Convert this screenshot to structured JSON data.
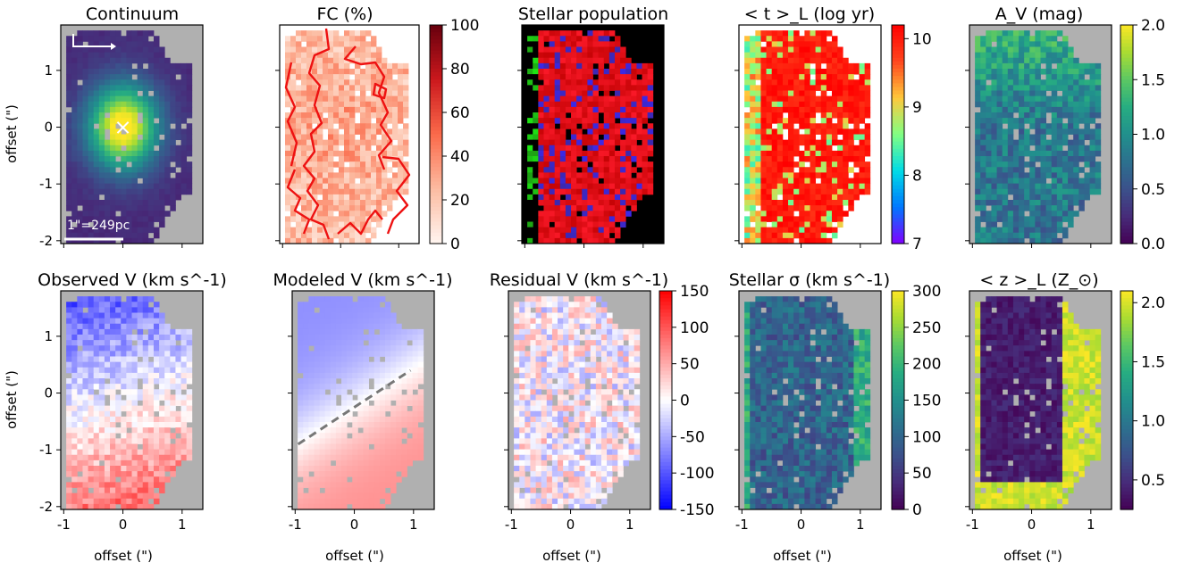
{
  "chart_data": [
    {
      "type": "heatmap",
      "title": "Continuum",
      "ylabel": "offset (\")",
      "xlabel": "",
      "cmap": "viridis",
      "ylim": [
        -2.05,
        1.8
      ],
      "xlim": [
        -1.05,
        1.35
      ],
      "yticks": [
        {
          "v": 1,
          "t": "1"
        },
        {
          "v": 0,
          "t": "0"
        },
        {
          "v": -1,
          "t": "-1"
        },
        {
          "v": -2,
          "t": "-2"
        }
      ],
      "xticks": [
        {
          "v": -1,
          "t": ""
        },
        {
          "v": 0,
          "t": ""
        },
        {
          "v": 1,
          "t": ""
        }
      ],
      "peak": {
        "x": 0.0,
        "y": 0.0
      },
      "annotations": {
        "marker": "×",
        "scalebar": "1\"=249pc"
      }
    },
    {
      "type": "heatmap",
      "title": "FC (%)",
      "cmap": "Reds",
      "ylim": [
        -2.05,
        1.8
      ],
      "xlim": [
        -1.05,
        1.35
      ],
      "yticks": [
        {
          "v": 1,
          "t": ""
        },
        {
          "v": 0,
          "t": ""
        },
        {
          "v": -1,
          "t": ""
        },
        {
          "v": -2,
          "t": ""
        }
      ],
      "xticks": [
        {
          "v": -1,
          "t": ""
        },
        {
          "v": 0,
          "t": ""
        },
        {
          "v": 1,
          "t": ""
        }
      ],
      "colorbar": {
        "range": [
          0,
          100
        ],
        "ticks": [
          {
            "v": 100,
            "t": "100"
          },
          {
            "v": 80,
            "t": "80"
          },
          {
            "v": 60,
            "t": "60"
          },
          {
            "v": 40,
            "t": "40"
          },
          {
            "v": 20,
            "t": "20"
          },
          {
            "v": 0,
            "t": "0"
          }
        ]
      }
    },
    {
      "type": "heatmap",
      "title": "Stellar population",
      "cmap": "rgb",
      "ylim": [
        -2.05,
        1.8
      ],
      "xlim": [
        -1.05,
        1.35
      ],
      "yticks": [
        {
          "v": 1,
          "t": ""
        },
        {
          "v": 0,
          "t": ""
        },
        {
          "v": -1,
          "t": ""
        },
        {
          "v": -2,
          "t": ""
        }
      ],
      "xticks": [
        {
          "v": -1,
          "t": ""
        },
        {
          "v": 0,
          "t": ""
        },
        {
          "v": 1,
          "t": ""
        }
      ]
    },
    {
      "type": "heatmap",
      "title": "< t >_L (log yr)",
      "cmap": "rainbow",
      "ylim": [
        -2.05,
        1.8
      ],
      "xlim": [
        -1.05,
        1.35
      ],
      "yticks": [
        {
          "v": 1,
          "t": ""
        },
        {
          "v": 0,
          "t": ""
        },
        {
          "v": -1,
          "t": ""
        },
        {
          "v": -2,
          "t": ""
        }
      ],
      "xticks": [
        {
          "v": -1,
          "t": ""
        },
        {
          "v": 0,
          "t": ""
        },
        {
          "v": 1,
          "t": ""
        }
      ],
      "colorbar": {
        "range": [
          7,
          10.2
        ],
        "ticks": [
          {
            "v": 10,
            "t": "10"
          },
          {
            "v": 9,
            "t": "9"
          },
          {
            "v": 8,
            "t": "8"
          },
          {
            "v": 7,
            "t": "7"
          }
        ]
      }
    },
    {
      "type": "heatmap",
      "title": "A_V (mag)",
      "cmap": "viridis",
      "ylim": [
        -2.05,
        1.8
      ],
      "xlim": [
        -1.05,
        1.35
      ],
      "yticks": [
        {
          "v": 1,
          "t": ""
        },
        {
          "v": 0,
          "t": ""
        },
        {
          "v": -1,
          "t": ""
        },
        {
          "v": -2,
          "t": ""
        }
      ],
      "xticks": [
        {
          "v": -1,
          "t": ""
        },
        {
          "v": 0,
          "t": ""
        },
        {
          "v": 1,
          "t": ""
        }
      ],
      "colorbar": {
        "range": [
          0,
          2
        ],
        "ticks": [
          {
            "v": 2,
            "t": "2.0"
          },
          {
            "v": 1.5,
            "t": "1.5"
          },
          {
            "v": 1,
            "t": "1.0"
          },
          {
            "v": 0.5,
            "t": "0.5"
          },
          {
            "v": 0,
            "t": "0.0"
          }
        ]
      }
    },
    {
      "type": "heatmap",
      "title": "Observed V (km s^-1)",
      "ylabel": "offset (\")",
      "xlabel": "offset (\")",
      "cmap": "bwr",
      "ylim": [
        -2.05,
        1.8
      ],
      "xlim": [
        -1.05,
        1.35
      ],
      "yticks": [
        {
          "v": 1,
          "t": "1"
        },
        {
          "v": 0,
          "t": "0"
        },
        {
          "v": -1,
          "t": "-1"
        },
        {
          "v": -2,
          "t": "-2"
        }
      ],
      "xticks": [
        {
          "v": -1,
          "t": "-1"
        },
        {
          "v": 0,
          "t": "0"
        },
        {
          "v": 1,
          "t": "1"
        }
      ]
    },
    {
      "type": "heatmap",
      "title": "Modeled V (km s^-1)",
      "xlabel": "offset (\")",
      "cmap": "bwr",
      "ylim": [
        -2.05,
        1.8
      ],
      "xlim": [
        -1.05,
        1.35
      ],
      "yticks": [
        {
          "v": 1,
          "t": ""
        },
        {
          "v": 0,
          "t": ""
        },
        {
          "v": -1,
          "t": ""
        },
        {
          "v": -2,
          "t": ""
        }
      ],
      "xticks": [
        {
          "v": -1,
          "t": "-1"
        },
        {
          "v": 0,
          "t": "0"
        },
        {
          "v": 1,
          "t": "1"
        }
      ],
      "line": {
        "x": [
          -0.95,
          0.95
        ],
        "y": [
          -0.9,
          0.4
        ],
        "style": "dashed"
      }
    },
    {
      "type": "heatmap",
      "title": "Residual V (km s^-1)",
      "xlabel": "offset (\")",
      "cmap": "bwr",
      "ylim": [
        -2.05,
        1.8
      ],
      "xlim": [
        -1.05,
        1.35
      ],
      "yticks": [
        {
          "v": 1,
          "t": ""
        },
        {
          "v": 0,
          "t": ""
        },
        {
          "v": -1,
          "t": ""
        },
        {
          "v": -2,
          "t": ""
        }
      ],
      "xticks": [
        {
          "v": -1,
          "t": "-1"
        },
        {
          "v": 0,
          "t": "0"
        },
        {
          "v": 1,
          "t": "1"
        }
      ],
      "colorbar": {
        "range": [
          -150,
          150
        ],
        "ticks": [
          {
            "v": 150,
            "t": "150"
          },
          {
            "v": 100,
            "t": "100"
          },
          {
            "v": 50,
            "t": "50"
          },
          {
            "v": 0,
            "t": "0"
          },
          {
            "v": -50,
            "t": "-50"
          },
          {
            "v": -100,
            "t": "-100"
          },
          {
            "v": -150,
            "t": "-150"
          }
        ]
      }
    },
    {
      "type": "heatmap",
      "title": "Stellar σ (km s^-1)",
      "xlabel": "offset (\")",
      "cmap": "viridis",
      "ylim": [
        -2.05,
        1.8
      ],
      "xlim": [
        -1.05,
        1.35
      ],
      "yticks": [
        {
          "v": 1,
          "t": ""
        },
        {
          "v": 0,
          "t": ""
        },
        {
          "v": -1,
          "t": ""
        },
        {
          "v": -2,
          "t": ""
        }
      ],
      "xticks": [
        {
          "v": -1,
          "t": "-1"
        },
        {
          "v": 0,
          "t": "0"
        },
        {
          "v": 1,
          "t": "1"
        }
      ],
      "colorbar": {
        "range": [
          0,
          300
        ],
        "ticks": [
          {
            "v": 300,
            "t": "300"
          },
          {
            "v": 250,
            "t": "250"
          },
          {
            "v": 200,
            "t": "200"
          },
          {
            "v": 150,
            "t": "150"
          },
          {
            "v": 100,
            "t": "100"
          },
          {
            "v": 50,
            "t": "50"
          },
          {
            "v": 0,
            "t": "0"
          }
        ]
      }
    },
    {
      "type": "heatmap",
      "title": "< z >_L (Z_⊙)",
      "xlabel": "offset (\")",
      "cmap": "viridis",
      "ylim": [
        -2.05,
        1.8
      ],
      "xlim": [
        -1.05,
        1.35
      ],
      "yticks": [
        {
          "v": 1,
          "t": ""
        },
        {
          "v": 0,
          "t": ""
        },
        {
          "v": -1,
          "t": ""
        },
        {
          "v": -2,
          "t": ""
        }
      ],
      "xticks": [
        {
          "v": -1,
          "t": "-1"
        },
        {
          "v": 0,
          "t": "0"
        },
        {
          "v": 1,
          "t": "1"
        }
      ],
      "colorbar": {
        "range": [
          0.25,
          2.1
        ],
        "ticks": [
          {
            "v": 2,
            "t": "2.0"
          },
          {
            "v": 1.5,
            "t": "1.5"
          },
          {
            "v": 1,
            "t": "1.0"
          },
          {
            "v": 0.5,
            "t": "0.5"
          }
        ]
      }
    }
  ],
  "colors": {
    "masked": "#b0b0b0",
    "contour": "#ee1111",
    "dashed_line": "#777777",
    "frame": "#000000"
  }
}
